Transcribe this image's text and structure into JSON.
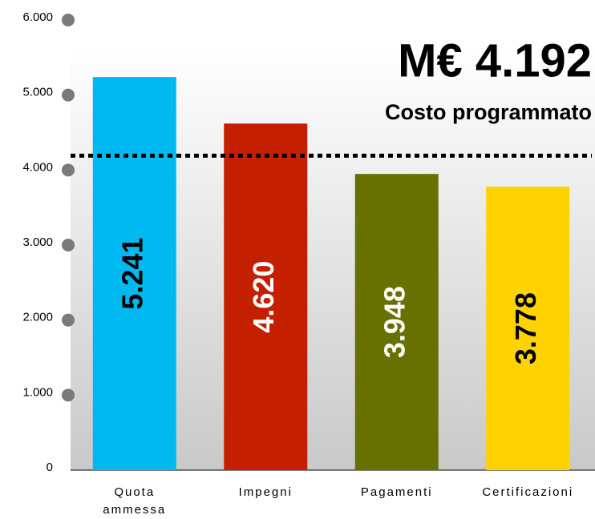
{
  "chart_data": {
    "type": "bar",
    "categories": [
      "Quota ammessa",
      "Impegni",
      "Pagamenti",
      "Certificazioni"
    ],
    "values": [
      5241,
      4620,
      3948,
      3778
    ],
    "value_labels": [
      "5.241",
      "4.620",
      "3.948",
      "3.778"
    ],
    "colors": [
      "#00b9f1",
      "#c41f00",
      "#667100",
      "#ffd300"
    ],
    "value_label_colors": [
      "#000000",
      "#ffffff",
      "#ffffff",
      "#000000"
    ],
    "ylim": [
      0,
      6000
    ],
    "yticks": [
      0,
      {
        "value": 1000,
        "label": "1.000"
      },
      {
        "value": 2000,
        "label": "2.000"
      },
      {
        "value": 3000,
        "label": "3.000"
      },
      {
        "value": 4000,
        "label": "4.000"
      },
      {
        "value": 5000,
        "label": "5.000"
      },
      {
        "value": 6000,
        "label": "6.000"
      }
    ],
    "reference_line": {
      "value": 4192,
      "label": "M€ 4.192",
      "text": "Costo programmato"
    }
  }
}
